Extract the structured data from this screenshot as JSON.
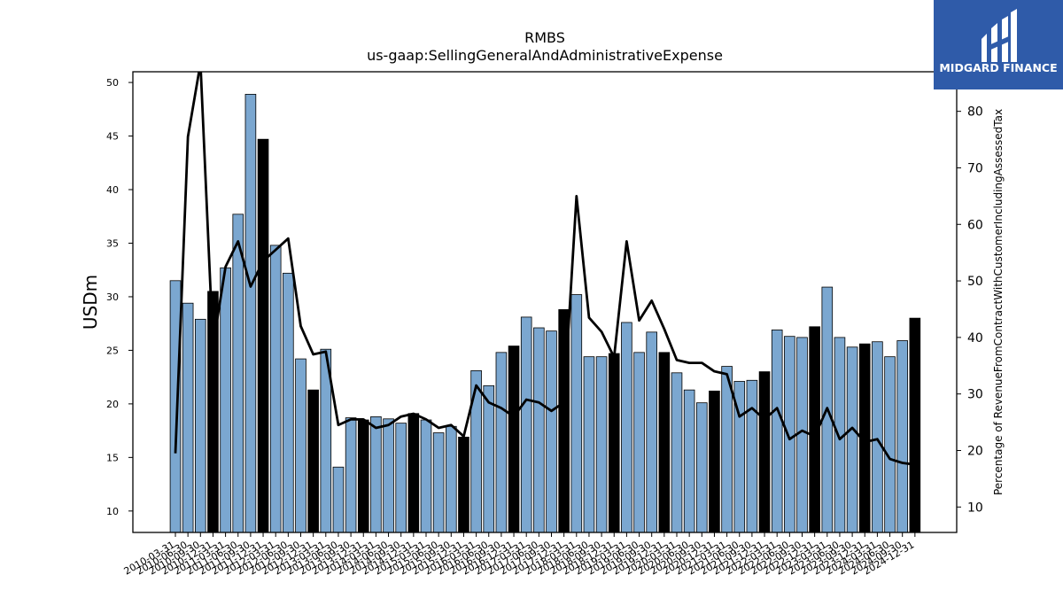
{
  "chart_data": {
    "type": "bar",
    "title": "RMBS",
    "subtitle": "us-gaap:SellingGeneralAndAdministrativeExpense",
    "ylabel": "USDm",
    "y2label": "Percentage of RevenueFromContractWithCustomerIncludingAssessedTax",
    "ylim": [
      8,
      51
    ],
    "y2lim": [
      5.5,
      87
    ],
    "yticks": [
      10,
      15,
      20,
      25,
      30,
      35,
      40,
      45,
      50
    ],
    "y2ticks": [
      10,
      20,
      30,
      40,
      50,
      60,
      70,
      80
    ],
    "grid": false,
    "legend": "none",
    "categories": [
      "2010-03-31",
      "2010-06-30",
      "2010-09-30",
      "2010-12-31",
      "2011-03-31",
      "2011-06-30",
      "2011-09-30",
      "2011-12-31",
      "2012-03-31",
      "2012-06-30",
      "2012-09-30",
      "2012-12-31",
      "2013-03-31",
      "2013-06-30",
      "2013-09-30",
      "2013-12-31",
      "2014-03-31",
      "2014-06-30",
      "2014-09-30",
      "2014-12-31",
      "2015-03-31",
      "2015-06-30",
      "2015-09-30",
      "2015-12-31",
      "2016-03-31",
      "2016-06-30",
      "2016-09-30",
      "2016-12-31",
      "2017-03-31",
      "2017-06-30",
      "2017-09-30",
      "2017-12-31",
      "2018-03-31",
      "2018-06-30",
      "2018-09-30",
      "2018-12-31",
      "2019-03-31",
      "2019-06-30",
      "2019-09-30",
      "2019-12-31",
      "2020-03-31",
      "2020-06-30",
      "2020-09-30",
      "2020-12-31",
      "2021-03-31",
      "2021-06-30",
      "2021-09-30",
      "2021-12-31",
      "2022-03-31",
      "2022-06-30",
      "2022-09-30",
      "2022-12-31",
      "2023-03-31",
      "2023-06-30",
      "2023-09-30",
      "2023-12-31",
      "2024-03-31",
      "2024-06-30",
      "2024-09-30",
      "2024-12-31"
    ],
    "series": [
      {
        "kind": "bar",
        "axis": "left",
        "values": [
          31.5,
          29.4,
          27.9,
          30.5,
          32.7,
          37.7,
          48.9,
          44.7,
          34.8,
          32.2,
          24.2,
          21.3,
          25.1,
          14.1,
          18.7,
          18.5,
          18.8,
          18.6,
          18.2,
          19.1,
          18.5,
          17.3,
          17.9,
          16.9,
          23.1,
          21.7,
          24.8,
          25.4,
          28.1,
          27.1,
          26.8,
          28.8,
          30.2,
          24.4,
          24.4,
          24.7,
          27.6,
          24.8,
          26.7,
          24.8,
          22.9,
          21.3,
          20.1,
          21.2,
          23.5,
          22.1,
          22.2,
          23.0,
          26.9,
          26.3,
          26.2,
          27.2,
          30.9,
          26.2,
          25.3,
          25.6,
          25.8,
          24.4,
          25.9,
          28.0
        ],
        "highlighted": [
          false,
          false,
          false,
          true,
          false,
          false,
          false,
          true,
          false,
          false,
          false,
          true,
          false,
          false,
          false,
          true,
          false,
          false,
          false,
          true,
          false,
          false,
          false,
          true,
          false,
          false,
          false,
          true,
          false,
          false,
          false,
          true,
          false,
          false,
          false,
          true,
          false,
          false,
          false,
          true,
          false,
          false,
          false,
          true,
          false,
          false,
          false,
          true,
          false,
          false,
          false,
          true,
          false,
          false,
          false,
          true,
          false,
          false,
          false,
          true
        ],
        "color": "#7ba7d0",
        "highlight_color": "#000000"
      },
      {
        "kind": "line",
        "axis": "right",
        "values": [
          19.5,
          75.5,
          88.5,
          38.5,
          52.5,
          57.0,
          49.0,
          53.5,
          55.5,
          57.5,
          42.0,
          37.0,
          37.5,
          24.5,
          25.5,
          25.5,
          24.0,
          24.5,
          26.0,
          26.5,
          25.5,
          24.0,
          24.5,
          22.5,
          31.5,
          28.5,
          27.5,
          26.0,
          29.0,
          28.5,
          27.0,
          28.5,
          65.0,
          43.5,
          41.0,
          36.5,
          57.0,
          43.0,
          46.5,
          41.5,
          36.0,
          35.5,
          35.5,
          34.0,
          33.5,
          26.0,
          27.5,
          25.5,
          27.5,
          22.0,
          23.5,
          22.5,
          27.5,
          22.0,
          24.0,
          21.5,
          22.0,
          18.5,
          17.8,
          17.5
        ],
        "color": "#000000"
      }
    ]
  },
  "logo": {
    "text": "MIDGARD FINANCE",
    "bg": "#2f5ba9"
  }
}
